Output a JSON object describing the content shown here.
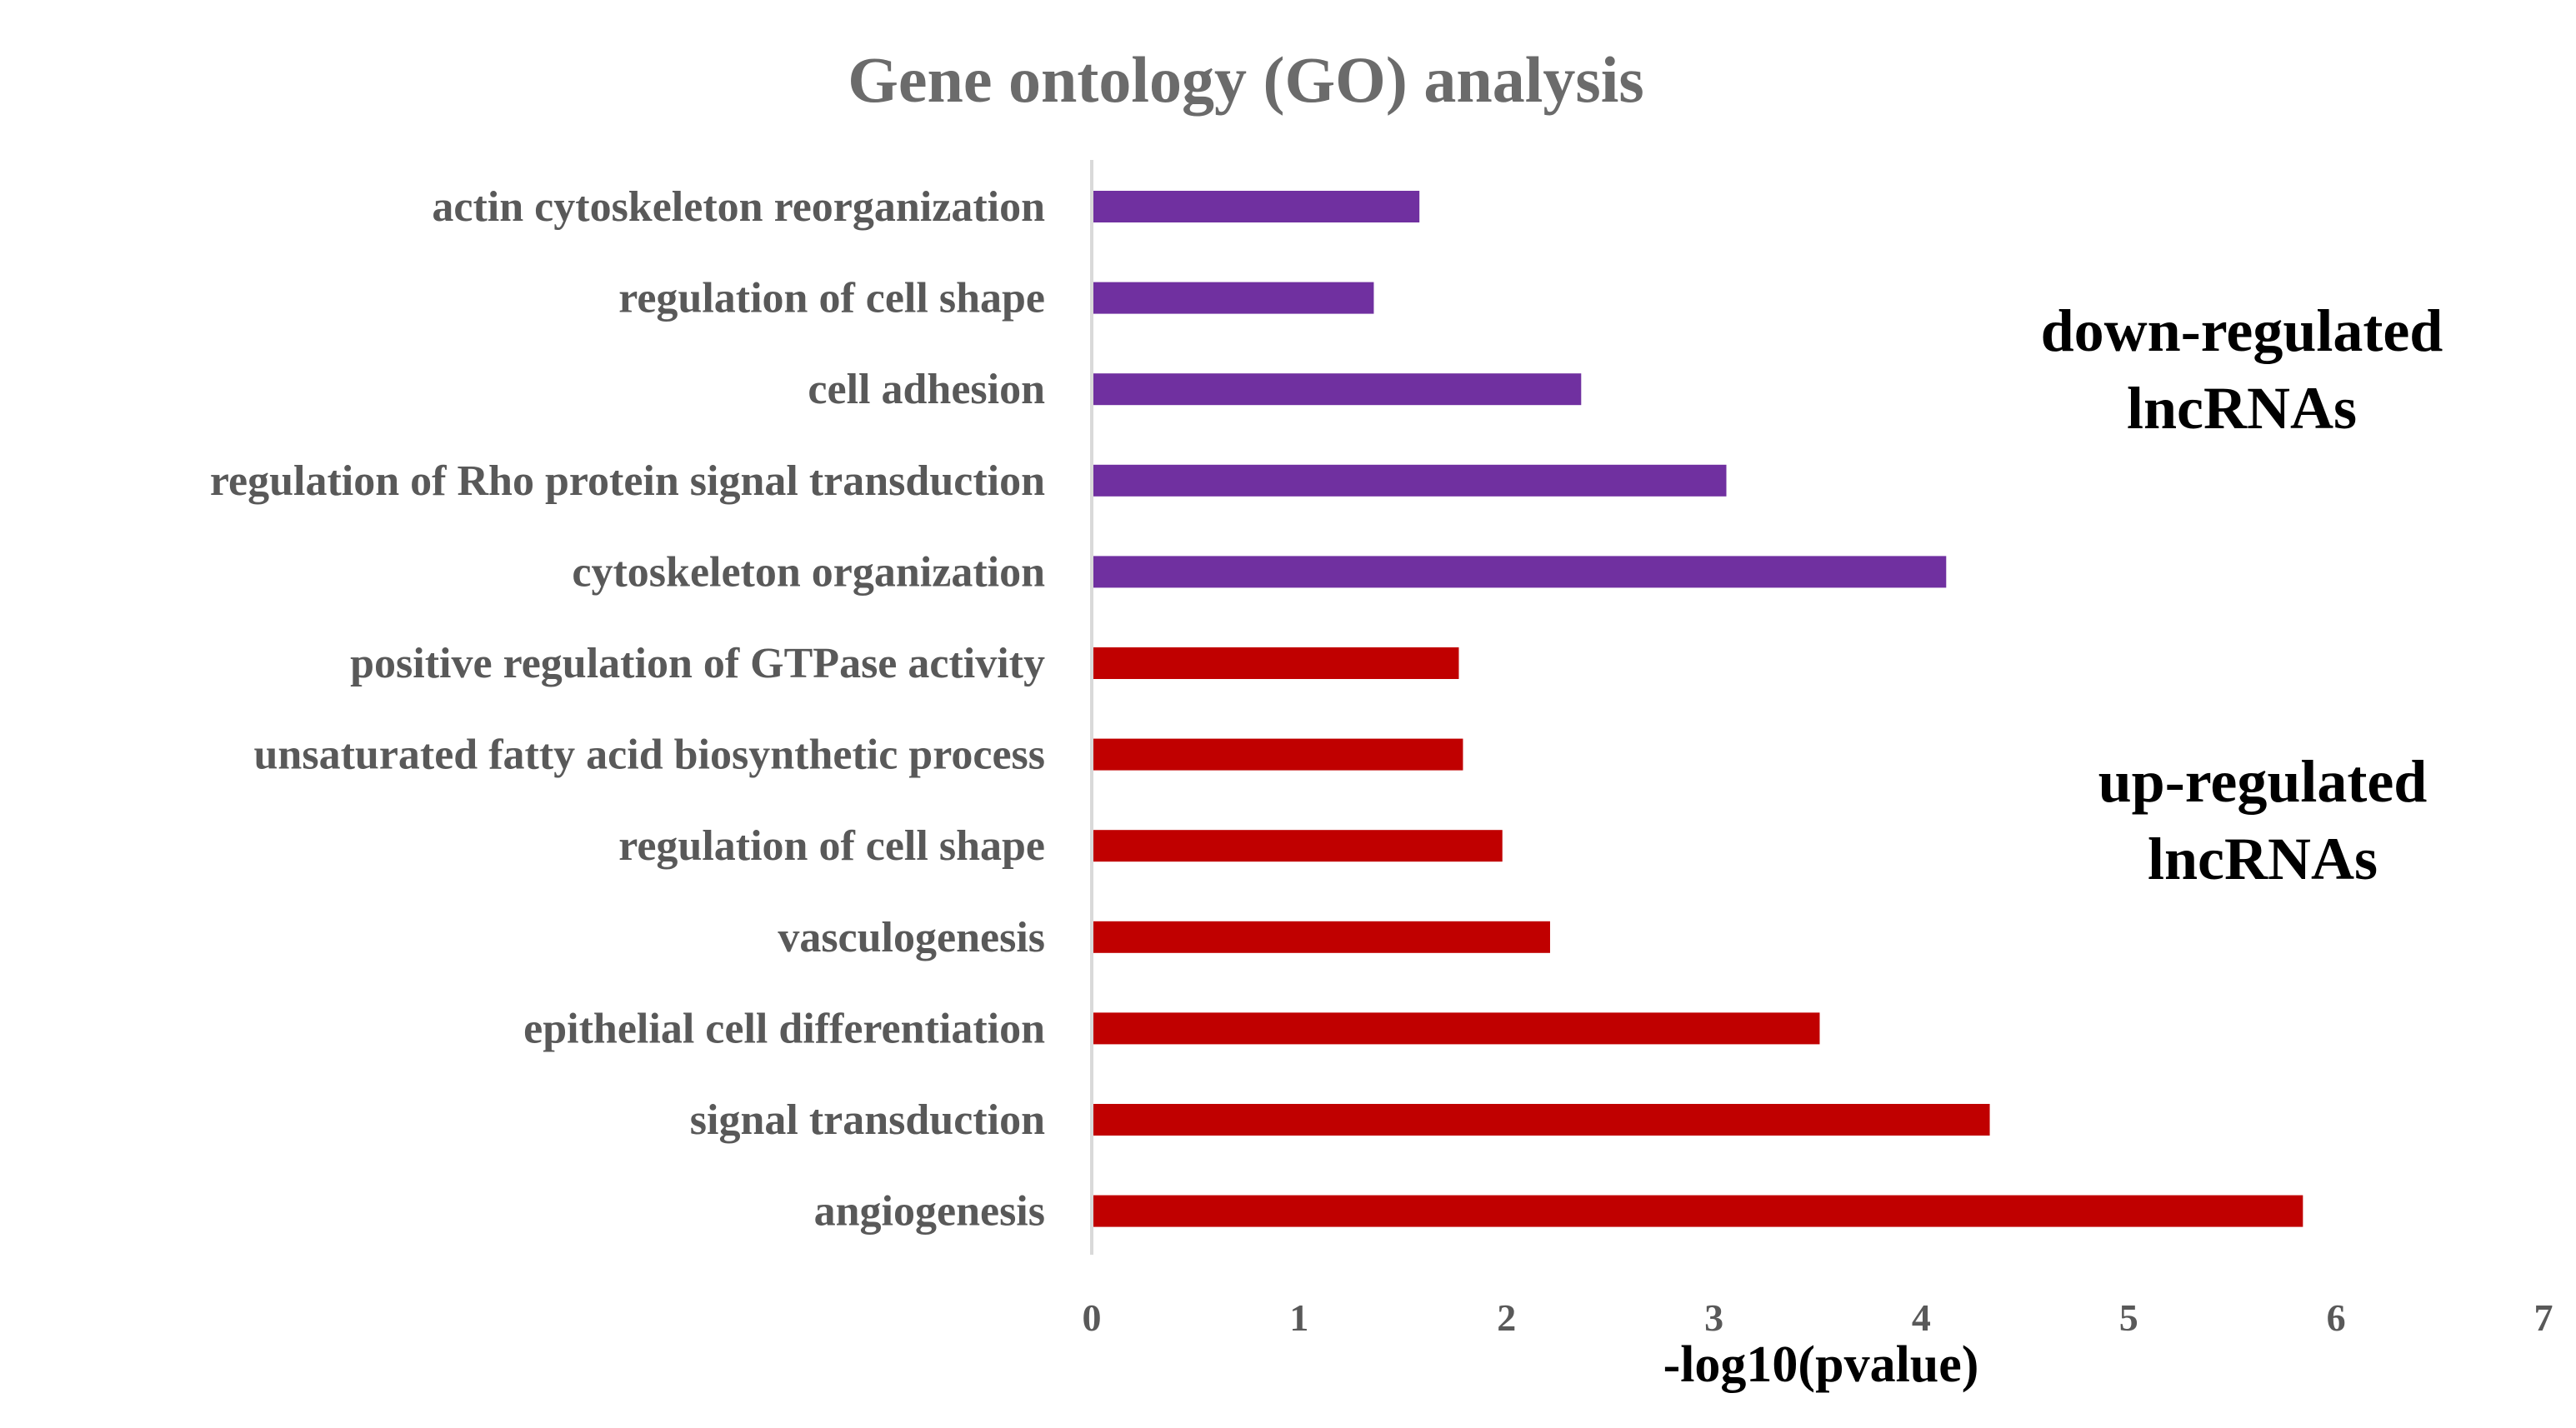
{
  "chart_data": {
    "type": "bar",
    "orientation": "horizontal",
    "title": "Gene ontology (GO) analysis",
    "xlabel": "-log10(pvalue)",
    "ylabel": "",
    "xlim": [
      0,
      7
    ],
    "xticks": [
      0,
      1,
      2,
      3,
      4,
      5,
      6,
      7
    ],
    "grid": false,
    "legend": null,
    "categories": [
      "actin cytoskeleton reorganization",
      "regulation of cell shape",
      "cell adhesion",
      "regulation of Rho protein signal transduction",
      "cytoskeleton organization",
      "positive regulation of GTPase activity",
      "unsaturated fatty acid biosynthetic process",
      "regulation of cell shape",
      "vasculogenesis",
      "epithelial cell differentiation",
      "signal transduction",
      "angiogenesis"
    ],
    "values": [
      1.58,
      1.36,
      2.36,
      3.06,
      4.12,
      1.77,
      1.79,
      1.98,
      2.21,
      3.51,
      4.33,
      5.84
    ],
    "groups": [
      "down",
      "down",
      "down",
      "down",
      "down",
      "up",
      "up",
      "up",
      "up",
      "up",
      "up",
      "up"
    ],
    "group_colors": {
      "down": "#7030a0",
      "up": "#c00000"
    },
    "annotations": {
      "down": [
        "down-regulated",
        "lncRNAs"
      ],
      "up": [
        "up-regulated",
        "lncRNAs"
      ]
    }
  }
}
